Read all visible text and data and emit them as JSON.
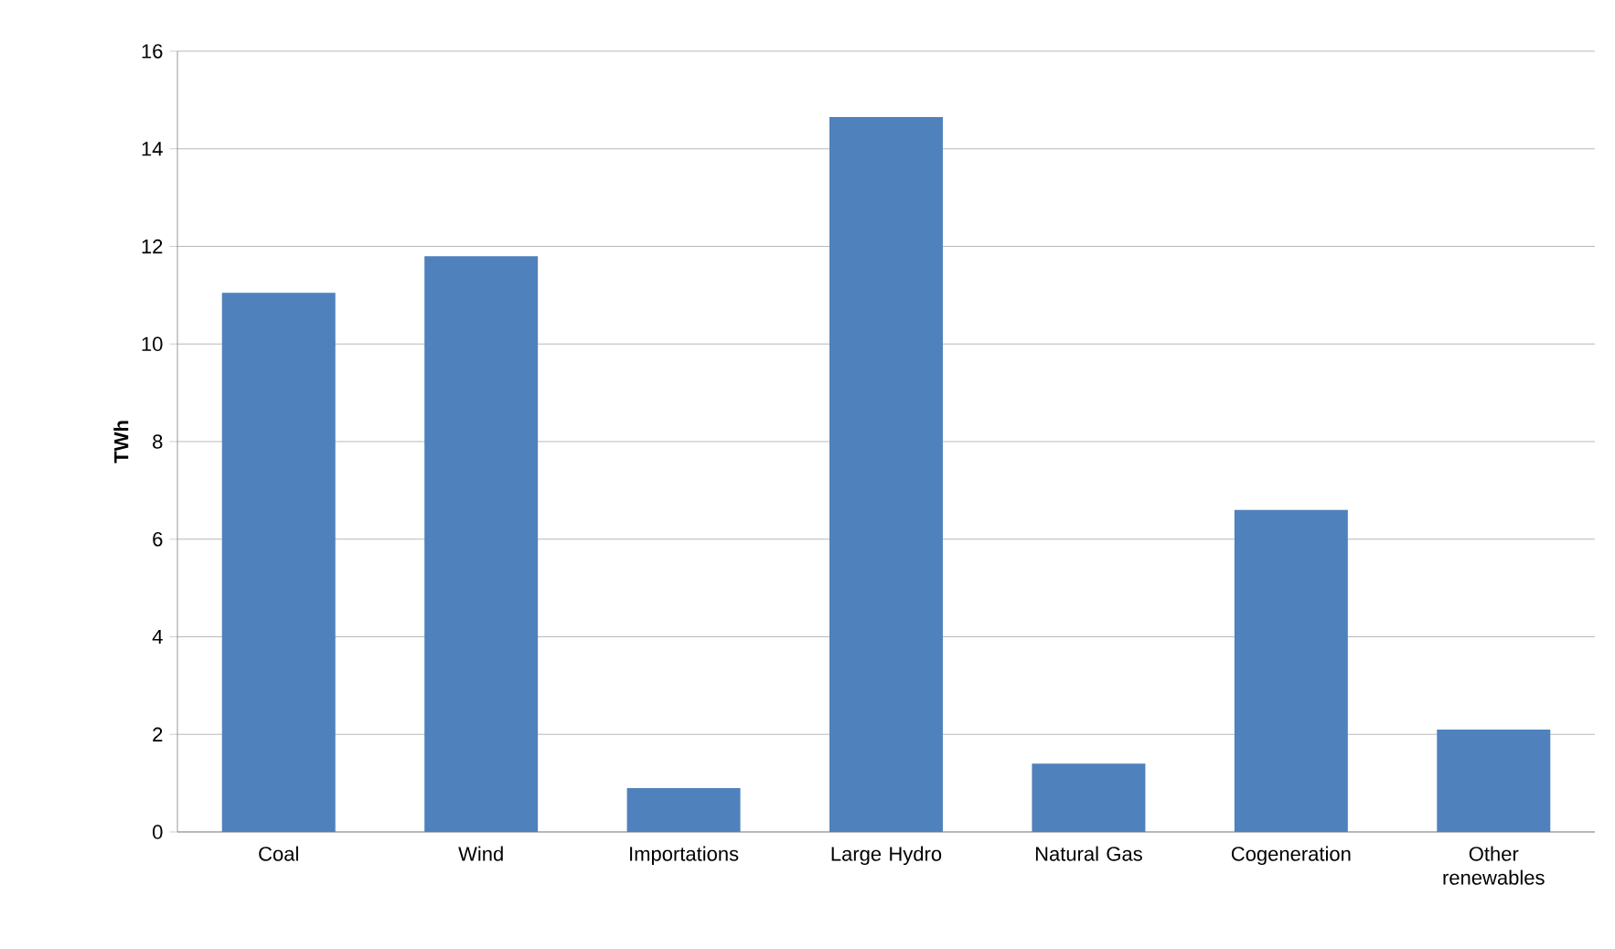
{
  "chart_data": {
    "type": "bar",
    "ylabel": "TWh",
    "categories": [
      "Coal",
      "Wind",
      "Importations",
      "Large Hydro",
      "Natural Gas",
      "Cogeneration",
      "Other renewables"
    ],
    "values": [
      11.05,
      11.8,
      0.9,
      14.65,
      1.4,
      6.6,
      2.1
    ],
    "color": "#4f81bd",
    "ylim": [
      0,
      16
    ],
    "yticks": [
      0,
      2,
      4,
      6,
      8,
      10,
      12,
      14,
      16
    ],
    "grid": "y"
  }
}
